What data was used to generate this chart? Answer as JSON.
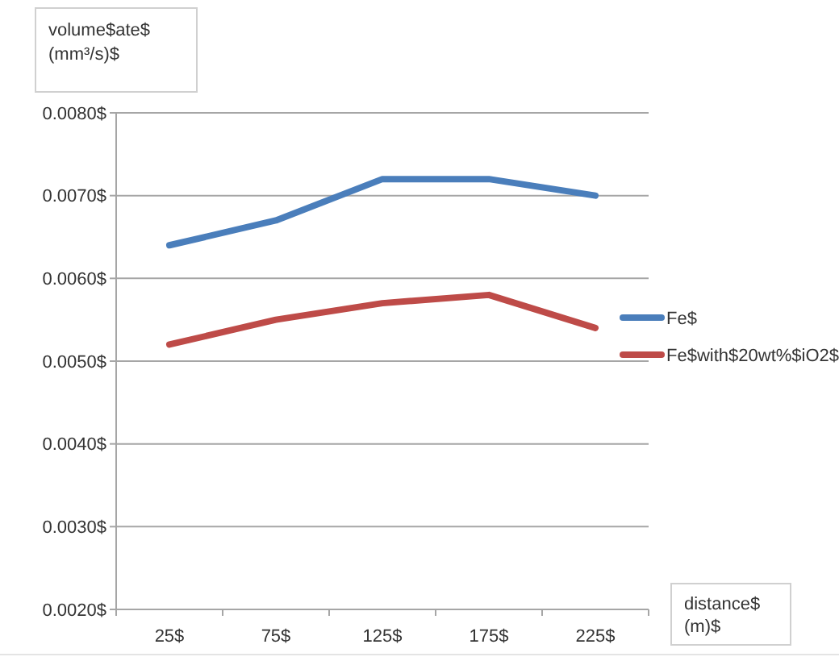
{
  "chart_data": {
    "type": "line",
    "ylabel": "volume$ate$ (mm³/s)$",
    "xlabel": "distance$ (m)$",
    "categories": [
      "25$",
      "75$",
      "125$",
      "175$",
      "225$"
    ],
    "series": [
      {
        "name": "Fe$",
        "color": "#4a7ebb",
        "values": [
          0.0064,
          0.0067,
          0.0072,
          0.0072,
          0.007
        ]
      },
      {
        "name": "Fe$with$20wt%$iO2$",
        "color": "#be4b48",
        "values": [
          0.0052,
          0.0055,
          0.0057,
          0.0058,
          0.0054
        ]
      }
    ],
    "ylim": [
      0.002,
      0.008
    ],
    "yticks": [
      {
        "value": 0.002,
        "label": "0.0020$"
      },
      {
        "value": 0.003,
        "label": "0.0030$"
      },
      {
        "value": 0.004,
        "label": "0.0040$"
      },
      {
        "value": 0.005,
        "label": "0.0050$"
      },
      {
        "value": 0.006,
        "label": "0.0060$"
      },
      {
        "value": 0.007,
        "label": "0.0070$"
      },
      {
        "value": 0.008,
        "label": "0.0080$"
      }
    ],
    "grid": "y",
    "legend": "right",
    "marker": "none",
    "line_style": "solid"
  }
}
